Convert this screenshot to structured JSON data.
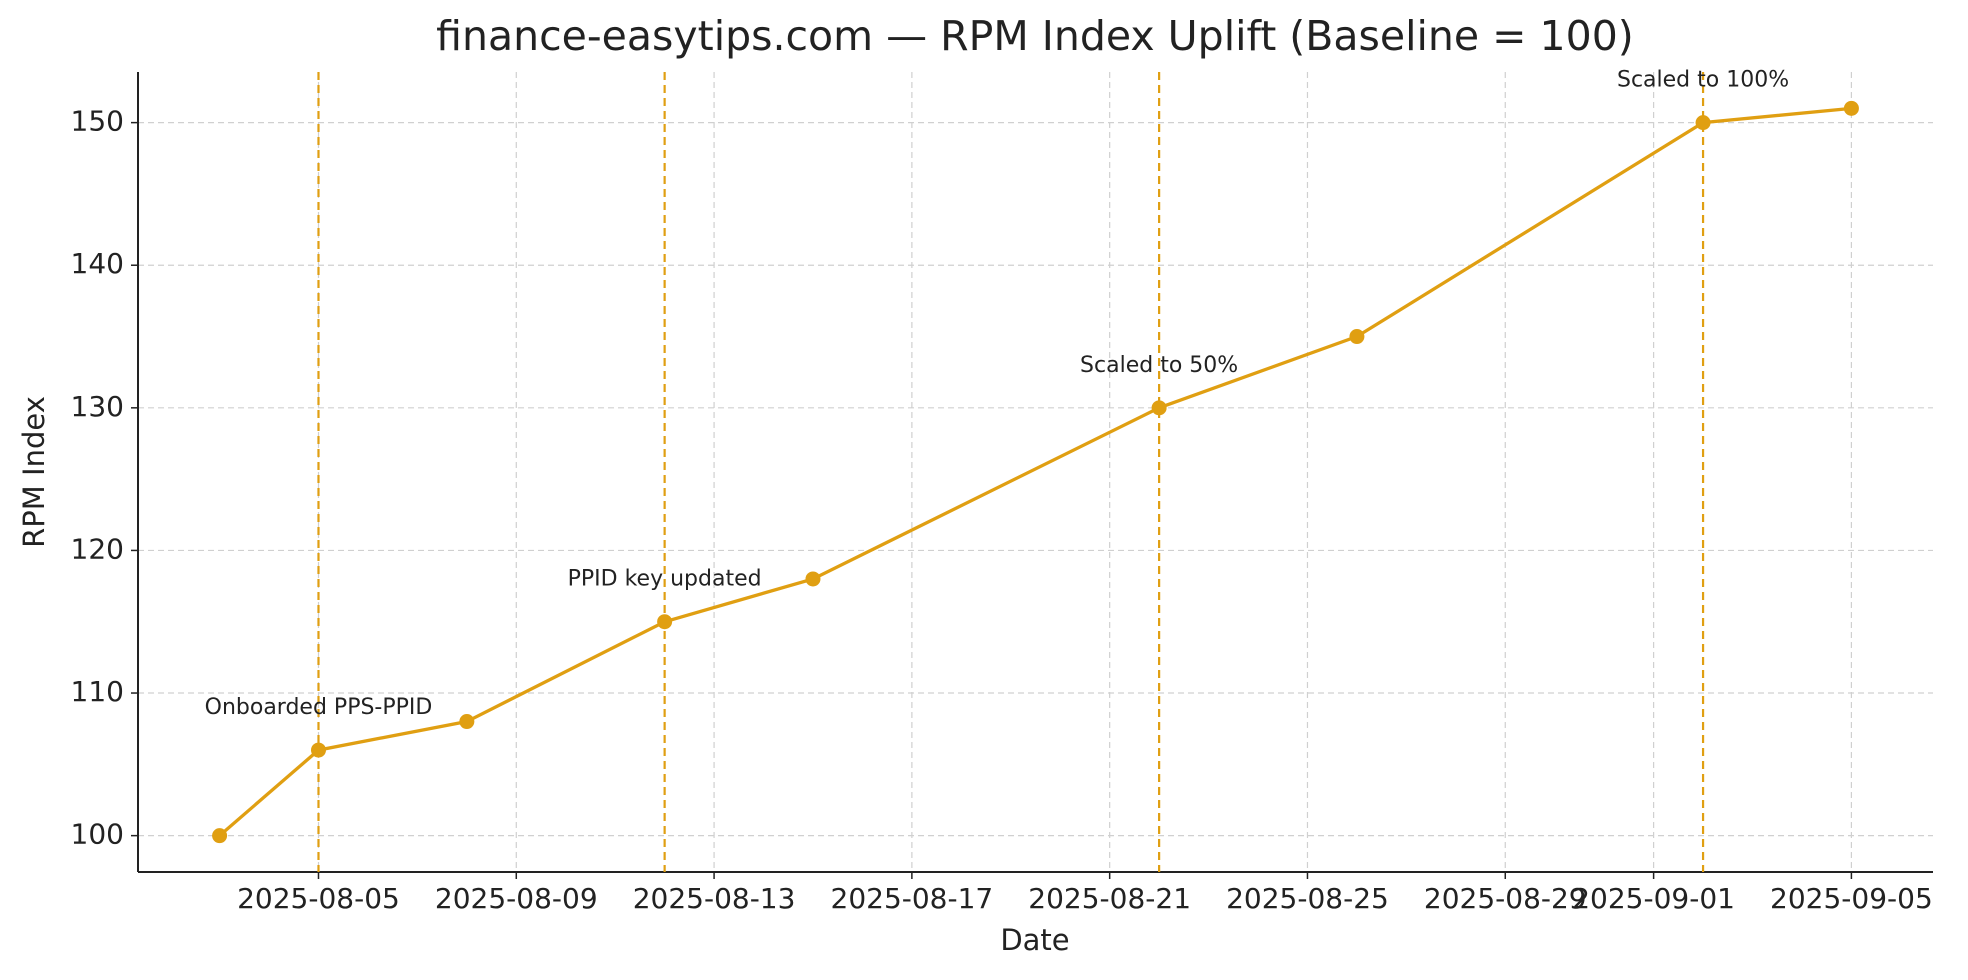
{
  "chart_data": {
    "type": "line",
    "title": "finance-easytips.com — RPM Index Uplift (Baseline = 100)",
    "x_label": "Date",
    "y_label": "RPM Index",
    "x": [
      "2025-08-03",
      "2025-08-05",
      "2025-08-08",
      "2025-08-12",
      "2025-08-15",
      "2025-08-22",
      "2025-08-26",
      "2025-09-02",
      "2025-09-05"
    ],
    "series": [
      {
        "name": "RPM Index",
        "color": "#e09f12",
        "values": [
          100,
          106,
          108,
          115,
          118,
          130,
          135,
          150,
          151
        ]
      }
    ],
    "annotations": [
      {
        "x": "2025-08-05",
        "text": "Onboarded PPS-PPID"
      },
      {
        "x": "2025-08-12",
        "text": "PPID key updated"
      },
      {
        "x": "2025-08-22",
        "text": "Scaled to 50%"
      },
      {
        "x": "2025-09-02",
        "text": "Scaled to 100%"
      }
    ],
    "xlim": [
      "2025-08-01T08:24",
      "2025-09-06T15:36"
    ],
    "xticks": [
      "2025-08-05",
      "2025-08-09",
      "2025-08-13",
      "2025-08-17",
      "2025-08-21",
      "2025-08-25",
      "2025-08-29",
      "2025-09-01",
      "2025-09-05"
    ],
    "ylim": [
      97.45,
      153.55
    ],
    "yticks": [
      100,
      110,
      120,
      130,
      140,
      150
    ],
    "grid": true
  }
}
